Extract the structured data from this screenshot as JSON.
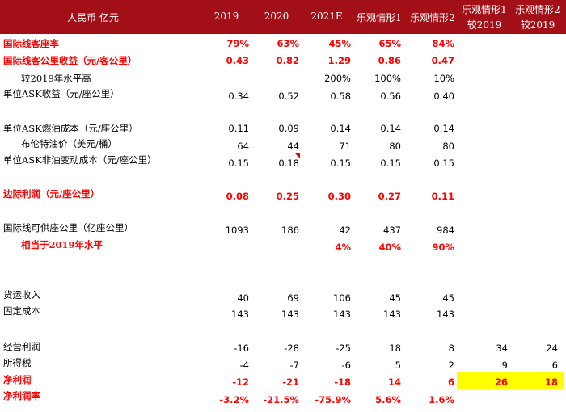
{
  "header": {
    "unit": "人民币 亿元",
    "col1": "2019",
    "col2": "2020",
    "col3": "2021E",
    "col4": "乐观情形1",
    "col5": "乐观情形2",
    "col6_line1": "乐观情形1",
    "col6_line2": "较2019",
    "col7_line1": "乐观情形2",
    "col7_line2": "较2019"
  },
  "rows": {
    "r1": {
      "label": "国际线客座率",
      "v1": "79%",
      "v2": "63%",
      "v3": "45%",
      "v4": "65%",
      "v5": "84%"
    },
    "r2": {
      "label": "国际线客公里收益（元/客公里）",
      "v1": "0.43",
      "v2": "0.82",
      "v3": "1.29",
      "v4": "0.86",
      "v5": "0.47"
    },
    "r3": {
      "label": "较2019年水平高",
      "v3": "200%",
      "v4": "100%",
      "v5": "10%"
    },
    "r4": {
      "label": "单位ASK收益（元/座公里）",
      "v1": "0.34",
      "v2": "0.52",
      "v3": "0.58",
      "v4": "0.56",
      "v5": "0.40"
    },
    "r5": {
      "label": "单位ASK燃油成本（元/座公里）",
      "v1": "0.11",
      "v2": "0.09",
      "v3": "0.14",
      "v4": "0.14",
      "v5": "0.14"
    },
    "r6": {
      "label": "布伦特油价（美元/桶）",
      "v1": "64",
      "v2": "44",
      "v3": "71",
      "v4": "80",
      "v5": "80"
    },
    "r7": {
      "label": "单位ASK非油变动成本（元/座公里）",
      "v1": "0.15",
      "v2": "0.18",
      "v3": "0.15",
      "v4": "0.15",
      "v5": "0.15"
    },
    "r8": {
      "label": "边际利润（元/座公里）",
      "v1": "0.08",
      "v2": "0.25",
      "v3": "0.30",
      "v4": "0.27",
      "v5": "0.11"
    },
    "r9": {
      "label": "国际线可供座公里（亿座公里）",
      "v1": "1093",
      "v2": "186",
      "v3": "42",
      "v4": "437",
      "v5": "984"
    },
    "r10": {
      "label": "相当于2019年水平",
      "v3": "4%",
      "v4": "40%",
      "v5": "90%"
    },
    "r11": {
      "label": "货运收入",
      "v1": "40",
      "v2": "69",
      "v3": "106",
      "v4": "45",
      "v5": "45"
    },
    "r12": {
      "label": "固定成本",
      "v1": "143",
      "v2": "143",
      "v3": "143",
      "v4": "143",
      "v5": "143"
    },
    "r13": {
      "label": "经营利润",
      "v1": "-16",
      "v2": "-28",
      "v3": "-25",
      "v4": "18",
      "v5": "8",
      "v6": "34",
      "v7": "24"
    },
    "r14": {
      "label": "所得税",
      "v1": "-4",
      "v2": "-7",
      "v3": "-6",
      "v4": "5",
      "v5": "2",
      "v6": "9",
      "v7": "6"
    },
    "r15": {
      "label": "净利润",
      "v1": "-12",
      "v2": "-21",
      "v3": "-18",
      "v4": "14",
      "v5": "6",
      "v6": "26",
      "v7": "18"
    },
    "r16": {
      "label": "净利润率",
      "v1": "-3.2%",
      "v2": "-21.5%",
      "v3": "-75.9%",
      "v4": "5.6%",
      "v5": "1.6%"
    }
  },
  "colors": {
    "header_bg": "#A30F17",
    "emphasis_red": "#FF0000",
    "highlight_yellow": "#FFFF00"
  }
}
